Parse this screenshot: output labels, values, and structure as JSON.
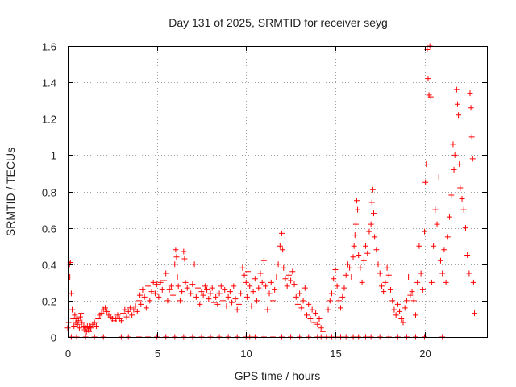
{
  "chart_data": {
    "type": "scatter",
    "title": "Day 131 of 2025, SRMTID for receiver seyg",
    "xlabel": "GPS time / hours",
    "ylabel": "SRMTID / TECUs",
    "xlim": [
      0,
      23.5
    ],
    "ylim": [
      0,
      1.6
    ],
    "xticks": [
      {
        "value": 0,
        "label": "0"
      },
      {
        "value": 5,
        "label": "5"
      },
      {
        "value": 10,
        "label": "10"
      },
      {
        "value": 15,
        "label": "15"
      },
      {
        "value": 20,
        "label": "20"
      }
    ],
    "yticks": [
      {
        "value": 0,
        "label": "0"
      },
      {
        "value": 0.2,
        "label": "0.2"
      },
      {
        "value": 0.4,
        "label": "0.4"
      },
      {
        "value": 0.6,
        "label": "0.6"
      },
      {
        "value": 0.8,
        "label": "0.8"
      },
      {
        "value": 1.0,
        "label": "1"
      },
      {
        "value": 1.2,
        "label": "1.2"
      },
      {
        "value": 1.4,
        "label": "1.4"
      },
      {
        "value": 1.6,
        "label": "1.6"
      }
    ],
    "grid": true,
    "marker": "plus",
    "color": "#ff0000",
    "series": [
      {
        "name": "SRMTID",
        "points": [
          [
            0.0,
            0.05
          ],
          [
            0.05,
            0.08
          ],
          [
            0.1,
            0.4
          ],
          [
            0.12,
            0.33
          ],
          [
            0.15,
            0.41
          ],
          [
            0.2,
            0.24
          ],
          [
            0.25,
            0.15
          ],
          [
            0.3,
            0.1
          ],
          [
            0.35,
            0.06
          ],
          [
            0.4,
            0.12
          ],
          [
            0.45,
            0.08
          ],
          [
            0.5,
            0.1
          ],
          [
            0.55,
            0.07
          ],
          [
            0.6,
            0.09
          ],
          [
            0.65,
            0.05
          ],
          [
            0.7,
            0.11
          ],
          [
            0.75,
            0.13
          ],
          [
            0.8,
            0.08
          ],
          [
            0.9,
            0.06
          ],
          [
            0.95,
            0.04
          ],
          [
            1.0,
            0.05
          ],
          [
            1.05,
            0.03
          ],
          [
            1.1,
            0.06
          ],
          [
            1.15,
            0.04
          ],
          [
            1.2,
            0.03
          ],
          [
            1.25,
            0.06
          ],
          [
            1.3,
            0.05
          ],
          [
            1.4,
            0.07
          ],
          [
            1.5,
            0.08
          ],
          [
            1.6,
            0.06
          ],
          [
            1.7,
            0.1
          ],
          [
            1.8,
            0.12
          ],
          [
            1.9,
            0.13
          ],
          [
            2.0,
            0.15
          ],
          [
            2.1,
            0.16
          ],
          [
            2.2,
            0.14
          ],
          [
            2.3,
            0.12
          ],
          [
            2.4,
            0.11
          ],
          [
            2.5,
            0.1
          ],
          [
            2.6,
            0.09
          ],
          [
            2.7,
            0.1
          ],
          [
            2.8,
            0.12
          ],
          [
            2.9,
            0.1
          ],
          [
            3.0,
            0.09
          ],
          [
            3.1,
            0.13
          ],
          [
            3.2,
            0.15
          ],
          [
            3.3,
            0.11
          ],
          [
            3.4,
            0.14
          ],
          [
            3.5,
            0.16
          ],
          [
            3.6,
            0.12
          ],
          [
            3.7,
            0.15
          ],
          [
            3.8,
            0.17
          ],
          [
            3.9,
            0.14
          ],
          [
            4.0,
            0.2
          ],
          [
            4.05,
            0.23
          ],
          [
            4.1,
            0.18
          ],
          [
            4.2,
            0.26
          ],
          [
            4.3,
            0.22
          ],
          [
            4.4,
            0.16
          ],
          [
            4.5,
            0.28
          ],
          [
            4.6,
            0.2
          ],
          [
            4.7,
            0.25
          ],
          [
            4.8,
            0.3
          ],
          [
            4.9,
            0.24
          ],
          [
            5.0,
            0.29
          ],
          [
            5.1,
            0.22
          ],
          [
            5.2,
            0.3
          ],
          [
            5.3,
            0.26
          ],
          [
            5.4,
            0.31
          ],
          [
            5.5,
            0.35
          ],
          [
            5.6,
            0.2
          ],
          [
            5.7,
            0.26
          ],
          [
            5.8,
            0.28
          ],
          [
            5.9,
            0.23
          ],
          [
            6.0,
            0.4
          ],
          [
            6.05,
            0.48
          ],
          [
            6.1,
            0.44
          ],
          [
            6.15,
            0.33
          ],
          [
            6.2,
            0.28
          ],
          [
            6.3,
            0.2
          ],
          [
            6.4,
            0.25
          ],
          [
            6.5,
            0.47
          ],
          [
            6.55,
            0.43
          ],
          [
            6.6,
            0.3
          ],
          [
            6.7,
            0.27
          ],
          [
            6.8,
            0.33
          ],
          [
            6.9,
            0.24
          ],
          [
            7.0,
            0.29
          ],
          [
            7.1,
            0.4
          ],
          [
            7.2,
            0.22
          ],
          [
            7.3,
            0.27
          ],
          [
            7.4,
            0.18
          ],
          [
            7.5,
            0.25
          ],
          [
            7.6,
            0.23
          ],
          [
            7.7,
            0.28
          ],
          [
            7.8,
            0.26
          ],
          [
            7.9,
            0.21
          ],
          [
            8.0,
            0.24
          ],
          [
            8.1,
            0.27
          ],
          [
            8.2,
            0.19
          ],
          [
            8.3,
            0.22
          ],
          [
            8.4,
            0.18
          ],
          [
            8.5,
            0.24
          ],
          [
            8.6,
            0.28
          ],
          [
            8.7,
            0.2
          ],
          [
            8.8,
            0.26
          ],
          [
            8.9,
            0.17
          ],
          [
            9.0,
            0.22
          ],
          [
            9.1,
            0.25
          ],
          [
            9.2,
            0.19
          ],
          [
            9.3,
            0.28
          ],
          [
            9.4,
            0.21
          ],
          [
            9.5,
            0.15
          ],
          [
            9.6,
            0.18
          ],
          [
            9.7,
            0.24
          ],
          [
            9.8,
            0.38
          ],
          [
            9.9,
            0.34
          ],
          [
            10.0,
            0.3
          ],
          [
            10.05,
            0.22
          ],
          [
            10.1,
            0.36
          ],
          [
            10.2,
            0.28
          ],
          [
            10.3,
            0.17
          ],
          [
            10.4,
            0.25
          ],
          [
            10.5,
            0.32
          ],
          [
            10.6,
            0.2
          ],
          [
            10.7,
            0.27
          ],
          [
            10.8,
            0.35
          ],
          [
            10.9,
            0.3
          ],
          [
            11.0,
            0.42
          ],
          [
            11.1,
            0.28
          ],
          [
            11.2,
            0.15
          ],
          [
            11.3,
            0.24
          ],
          [
            11.4,
            0.3
          ],
          [
            11.5,
            0.2
          ],
          [
            11.6,
            0.26
          ],
          [
            11.7,
            0.33
          ],
          [
            11.8,
            0.4
          ],
          [
            11.9,
            0.5
          ],
          [
            12.0,
            0.57
          ],
          [
            12.05,
            0.48
          ],
          [
            12.1,
            0.38
          ],
          [
            12.2,
            0.32
          ],
          [
            12.3,
            0.28
          ],
          [
            12.4,
            0.34
          ],
          [
            12.5,
            0.31
          ],
          [
            12.6,
            0.36
          ],
          [
            12.7,
            0.29
          ],
          [
            12.8,
            0.22
          ],
          [
            12.9,
            0.18
          ],
          [
            13.0,
            0.24
          ],
          [
            13.1,
            0.16
          ],
          [
            13.2,
            0.2
          ],
          [
            13.3,
            0.27
          ],
          [
            13.4,
            0.12
          ],
          [
            13.5,
            0.18
          ],
          [
            13.6,
            0.1
          ],
          [
            13.7,
            0.15
          ],
          [
            13.8,
            0.08
          ],
          [
            13.9,
            0.13
          ],
          [
            14.0,
            0.07
          ],
          [
            14.1,
            0.1
          ],
          [
            14.2,
            0.05
          ],
          [
            14.3,
            0.03
          ],
          [
            14.6,
            0.15
          ],
          [
            14.7,
            0.2
          ],
          [
            14.8,
            0.24
          ],
          [
            14.9,
            0.32
          ],
          [
            15.0,
            0.37
          ],
          [
            15.1,
            0.28
          ],
          [
            15.2,
            0.2
          ],
          [
            15.3,
            0.16
          ],
          [
            15.4,
            0.22
          ],
          [
            15.5,
            0.27
          ],
          [
            15.6,
            0.34
          ],
          [
            15.7,
            0.4
          ],
          [
            15.8,
            0.38
          ],
          [
            15.9,
            0.33
          ],
          [
            16.0,
            0.44
          ],
          [
            16.05,
            0.5
          ],
          [
            16.1,
            0.56
          ],
          [
            16.15,
            0.62
          ],
          [
            16.2,
            0.75
          ],
          [
            16.25,
            0.7
          ],
          [
            16.3,
            0.45
          ],
          [
            16.4,
            0.38
          ],
          [
            16.5,
            0.3
          ],
          [
            16.6,
            0.42
          ],
          [
            16.7,
            0.5
          ],
          [
            16.8,
            0.46
          ],
          [
            16.9,
            0.58
          ],
          [
            17.0,
            0.62
          ],
          [
            17.05,
            0.74
          ],
          [
            17.1,
            0.81
          ],
          [
            17.15,
            0.68
          ],
          [
            17.2,
            0.55
          ],
          [
            17.3,
            0.48
          ],
          [
            17.4,
            0.4
          ],
          [
            17.5,
            0.35
          ],
          [
            17.6,
            0.28
          ],
          [
            17.7,
            0.25
          ],
          [
            17.8,
            0.3
          ],
          [
            17.9,
            0.38
          ],
          [
            18.0,
            0.34
          ],
          [
            18.1,
            0.26
          ],
          [
            18.2,
            0.2
          ],
          [
            18.3,
            0.15
          ],
          [
            18.4,
            0.12
          ],
          [
            18.5,
            0.18
          ],
          [
            18.6,
            0.14
          ],
          [
            18.7,
            0.1
          ],
          [
            18.8,
            0.08
          ],
          [
            18.9,
            0.16
          ],
          [
            19.0,
            0.2
          ],
          [
            19.1,
            0.33
          ],
          [
            19.2,
            0.23
          ],
          [
            19.3,
            0.25
          ],
          [
            19.4,
            0.2
          ],
          [
            19.5,
            0.12
          ],
          [
            19.6,
            0.3
          ],
          [
            19.7,
            0.5
          ],
          [
            19.8,
            0.35
          ],
          [
            19.9,
            0.26
          ],
          [
            20.0,
            0.58
          ],
          [
            20.05,
            0.85
          ],
          [
            20.1,
            0.95
          ],
          [
            20.15,
            1.58
          ],
          [
            20.2,
            1.42
          ],
          [
            20.25,
            1.33
          ],
          [
            20.3,
            1.6
          ],
          [
            20.35,
            1.32
          ],
          [
            20.4,
            0.3
          ],
          [
            20.5,
            0.5
          ],
          [
            20.6,
            0.7
          ],
          [
            20.7,
            0.62
          ],
          [
            20.8,
            0.88
          ],
          [
            20.9,
            0.42
          ],
          [
            21.0,
            0.35
          ],
          [
            21.1,
            0.48
          ],
          [
            21.2,
            0.3
          ],
          [
            21.3,
            0.55
          ],
          [
            21.4,
            0.66
          ],
          [
            21.5,
            0.78
          ],
          [
            21.6,
            1.06
          ],
          [
            21.65,
            0.92
          ],
          [
            21.7,
            1.0
          ],
          [
            21.8,
            1.36
          ],
          [
            21.85,
            1.28
          ],
          [
            21.9,
            1.22
          ],
          [
            21.95,
            0.95
          ],
          [
            22.0,
            0.82
          ],
          [
            22.1,
            0.76
          ],
          [
            22.2,
            0.7
          ],
          [
            22.3,
            0.6
          ],
          [
            22.4,
            0.45
          ],
          [
            22.5,
            0.35
          ],
          [
            22.55,
            1.34
          ],
          [
            22.6,
            1.26
          ],
          [
            22.65,
            1.1
          ],
          [
            22.7,
            0.98
          ],
          [
            22.75,
            0.3
          ],
          [
            22.8,
            0.13
          ]
        ],
        "zero_markers_x": [
          0.2,
          0.5,
          1.0,
          1.5,
          2.0,
          3.0,
          3.4,
          4.0,
          4.5,
          5.0,
          5.5,
          6.0,
          6.5,
          7.0,
          7.5,
          8.0,
          8.5,
          9.0,
          9.5,
          10.0,
          10.2,
          10.5,
          11.0,
          11.5,
          12.0,
          12.5,
          13.0,
          13.5,
          14.0,
          14.2,
          14.5,
          14.8,
          15.0,
          15.3,
          15.6,
          16.0,
          16.3,
          16.7,
          17.0,
          17.5,
          18.0,
          18.5,
          19.0,
          19.5,
          20.0,
          21.0
        ]
      }
    ]
  }
}
